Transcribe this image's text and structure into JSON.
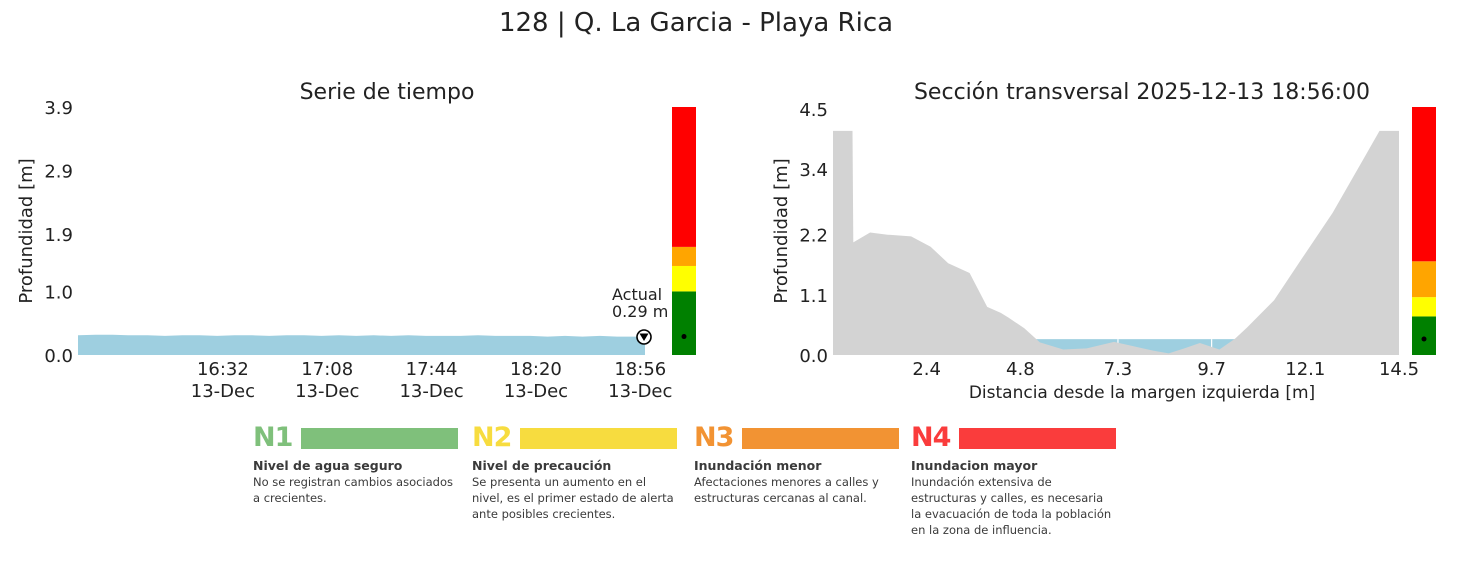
{
  "suptitle": "128 | Q. La Garcia - Playa Rica",
  "colors": {
    "water": "#9ecfe0",
    "terrain": "#d3d3d3",
    "n1_bar": "#7fc07b",
    "n2_bar": "#f7dc3f",
    "n3_bar": "#f29333",
    "n4_bar": "#fa3c3c",
    "gauge_green": "#008000",
    "gauge_yellow": "#ffff00",
    "gauge_orange": "#ffa500",
    "gauge_red": "#ff0000"
  },
  "time_series": {
    "title": "Serie de tiempo",
    "ylabel": "Profundidad [m]",
    "yticks": [
      "0.0",
      "1.0",
      "1.9",
      "2.9",
      "3.9"
    ],
    "ylim": [
      0,
      3.9
    ],
    "xlim": [
      15.7,
      18.96
    ],
    "xticks": [
      {
        "t": 16.533,
        "time": "16:32",
        "date": "13-Dec"
      },
      {
        "t": 17.133,
        "time": "17:08",
        "date": "13-Dec"
      },
      {
        "t": 17.733,
        "time": "17:44",
        "date": "13-Dec"
      },
      {
        "t": 18.333,
        "time": "18:20",
        "date": "13-Dec"
      },
      {
        "t": 18.933,
        "time": "18:56",
        "date": "13-Dec"
      }
    ],
    "annotation_label": "Actual",
    "annotation_value": "0.29 m",
    "current_depth": 0.29,
    "thresholds": [
      1.0,
      1.4,
      1.7,
      3.9
    ]
  },
  "cross_section": {
    "title": "Sección transversal 2025-12-13 18:56:00",
    "ylabel": "Profundidad [m]",
    "xlabel": "Distancia desde la margen izquierda [m]",
    "yticks": [
      "0.0",
      "1.1",
      "2.2",
      "3.4",
      "4.5"
    ],
    "ylim": [
      0,
      4.5
    ],
    "xlim": [
      0,
      14.5
    ],
    "xticks": [
      "2.4",
      "4.8",
      "7.3",
      "9.7",
      "12.1",
      "14.5"
    ],
    "water_level": 0.29,
    "thresholds": [
      0.7,
      1.05,
      1.7,
      4.5
    ]
  },
  "chart_data": [
    {
      "type": "area",
      "title": "Serie de tiempo",
      "xlabel": "",
      "ylabel": "Profundidad [m]",
      "ylim": [
        0,
        3.9
      ],
      "x": [
        15.7,
        15.8,
        15.9,
        16.0,
        16.1,
        16.2,
        16.3,
        16.4,
        16.5,
        16.6,
        16.7,
        16.8,
        16.9,
        17.0,
        17.1,
        17.2,
        17.3,
        17.4,
        17.5,
        17.6,
        17.7,
        17.8,
        17.9,
        18.0,
        18.1,
        18.2,
        18.3,
        18.4,
        18.5,
        18.6,
        18.7,
        18.8,
        18.9,
        18.96
      ],
      "series": [
        {
          "name": "Profundidad",
          "values": [
            0.31,
            0.32,
            0.32,
            0.31,
            0.31,
            0.3,
            0.31,
            0.31,
            0.3,
            0.31,
            0.31,
            0.3,
            0.31,
            0.31,
            0.3,
            0.31,
            0.3,
            0.31,
            0.3,
            0.31,
            0.3,
            0.3,
            0.3,
            0.31,
            0.3,
            0.3,
            0.3,
            0.29,
            0.3,
            0.29,
            0.3,
            0.29,
            0.29,
            0.29
          ]
        }
      ]
    },
    {
      "type": "area",
      "title": "Sección transversal 2025-12-13 18:56:00",
      "xlabel": "Distancia desde la margen izquierda [m]",
      "ylabel": "Profundidad [m]",
      "xlim": [
        0,
        14.5
      ],
      "ylim": [
        0,
        4.5
      ],
      "x": [
        0.0,
        0.5,
        0.52,
        0.95,
        1.4,
        2.0,
        2.5,
        2.95,
        3.5,
        3.95,
        4.3,
        4.5,
        4.9,
        5.3,
        5.9,
        6.5,
        7.2,
        7.7,
        8.2,
        8.6,
        9.0,
        9.4,
        9.9,
        10.3,
        10.6,
        11.3,
        12.0,
        12.8,
        13.6,
        14.0,
        14.5
      ],
      "series": [
        {
          "name": "Terreno",
          "values": [
            4.1,
            4.1,
            2.06,
            2.24,
            2.2,
            2.17,
            1.98,
            1.68,
            1.5,
            0.88,
            0.77,
            0.68,
            0.49,
            0.23,
            0.1,
            0.12,
            0.24,
            0.16,
            0.08,
            0.03,
            0.12,
            0.22,
            0.1,
            0.3,
            0.5,
            1.0,
            1.75,
            2.6,
            3.6,
            4.1,
            4.1
          ]
        }
      ],
      "water_level": 0.29
    }
  ],
  "legend": [
    {
      "code": "N1",
      "title": "Nivel de agua seguro",
      "desc": "No se registran cambios asociados a crecientes."
    },
    {
      "code": "N2",
      "title": "Nivel de precaución",
      "desc": "Se presenta un aumento en el nivel, es el primer estado de alerta ante posibles crecientes."
    },
    {
      "code": "N3",
      "title": "Inundación menor",
      "desc": "Afectaciones menores a calles y estructuras cercanas al canal."
    },
    {
      "code": "N4",
      "title": "Inundacion mayor",
      "desc": "Inundación extensiva de estructuras y calles, es necesaria la evacuación de toda la población en la zona de influencia."
    }
  ]
}
